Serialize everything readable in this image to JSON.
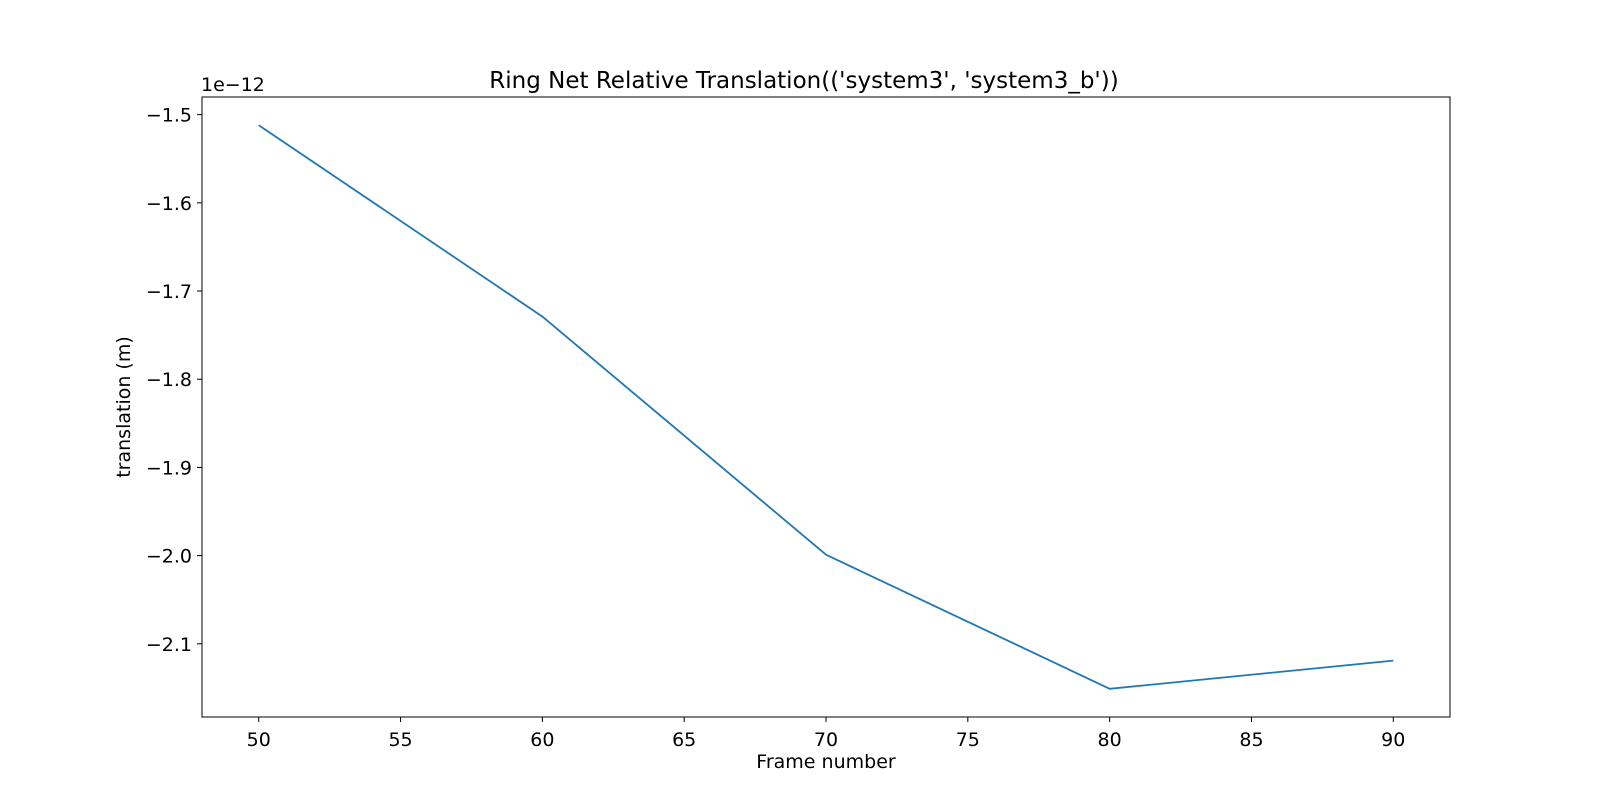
{
  "chart_data": {
    "type": "line",
    "title": "Ring Net Relative Translation(('system3', 'system3_b'))",
    "xlabel": "Frame number",
    "ylabel": "translation (m)",
    "y_offset_label": "1e−12",
    "x": [
      50,
      60,
      70,
      80,
      90
    ],
    "series": [
      {
        "values": [
          -1.512,
          -1.729,
          -1.999,
          -2.151,
          -2.119
        ],
        "color": "#1f77b4"
      }
    ],
    "xlim": [
      48,
      92
    ],
    "ylim": [
      -2.183,
      -1.48
    ],
    "xticks": [
      50,
      55,
      60,
      65,
      70,
      75,
      80,
      85,
      90
    ],
    "xtick_labels": [
      "50",
      "55",
      "60",
      "65",
      "70",
      "75",
      "80",
      "85",
      "90"
    ],
    "yticks": [
      -1.5,
      -1.6,
      -1.7,
      -1.8,
      -1.9,
      -2.0,
      -2.1
    ],
    "ytick_labels": [
      "−1.5",
      "−1.6",
      "−1.7",
      "−1.8",
      "−1.9",
      "−2.0",
      "−2.1"
    ],
    "grid": false,
    "legend": "none"
  }
}
